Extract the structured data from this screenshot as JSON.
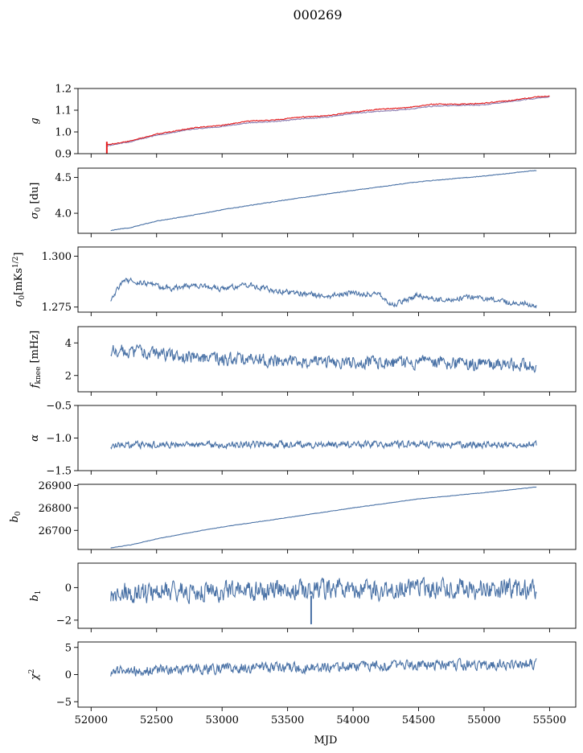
{
  "title": "000269",
  "xlabel": "MJD",
  "xlim": [
    51900,
    55700
  ],
  "xticks": [
    52000,
    52500,
    53000,
    53500,
    54000,
    54500,
    55000,
    55500
  ],
  "colors": {
    "main": "#4a72a6",
    "secondary": "#8a7bb0",
    "highlight": "#e41a1c"
  },
  "chart_data": [
    {
      "type": "line",
      "id": "g",
      "ylabel": "g",
      "ylim": [
        0.9,
        1.2
      ],
      "yticks": [
        0.9,
        1.0,
        1.1,
        1.2
      ],
      "tick_labels": [
        "0.9",
        "1.0",
        "1.1",
        "1.2"
      ],
      "series": [
        {
          "color": "#8a7bb0",
          "noise": 0.002,
          "points": [
            [
              52120,
              0.935
            ],
            [
              52300,
              0.955
            ],
            [
              52500,
              0.985
            ],
            [
              52800,
              1.015
            ],
            [
              53000,
              1.025
            ],
            [
              53200,
              1.042
            ],
            [
              53400,
              1.048
            ],
            [
              53600,
              1.06
            ],
            [
              53800,
              1.068
            ],
            [
              54000,
              1.085
            ],
            [
              54200,
              1.095
            ],
            [
              54400,
              1.103
            ],
            [
              54600,
              1.118
            ],
            [
              54800,
              1.122
            ],
            [
              55000,
              1.125
            ],
            [
              55200,
              1.14
            ],
            [
              55400,
              1.155
            ],
            [
              55500,
              1.162
            ]
          ]
        },
        {
          "color": "#e41a1c",
          "noise": 0.002,
          "points": [
            [
              52120,
              0.94
            ],
            [
              52300,
              0.958
            ],
            [
              52500,
              0.99
            ],
            [
              52800,
              1.02
            ],
            [
              53000,
              1.03
            ],
            [
              53200,
              1.05
            ],
            [
              53400,
              1.055
            ],
            [
              53600,
              1.068
            ],
            [
              53800,
              1.075
            ],
            [
              54000,
              1.092
            ],
            [
              54200,
              1.105
            ],
            [
              54400,
              1.11
            ],
            [
              54600,
              1.128
            ],
            [
              54800,
              1.128
            ],
            [
              55000,
              1.132
            ],
            [
              55200,
              1.145
            ],
            [
              55400,
              1.162
            ],
            [
              55500,
              1.165
            ]
          ]
        }
      ],
      "spike": {
        "x": 52120,
        "y_from": 0.9,
        "y_to": 0.955,
        "color": "#e41a1c"
      }
    },
    {
      "type": "line",
      "id": "sigma0_du",
      "ylabel": "σ0 [du]",
      "ylim": [
        3.72,
        4.63
      ],
      "yticks": [
        4.0,
        4.5
      ],
      "tick_labels": [
        "4.0",
        "4.5"
      ],
      "series": [
        {
          "color": "#4a72a6",
          "noise": 0.004,
          "points": [
            [
              52150,
              3.76
            ],
            [
              52300,
              3.8
            ],
            [
              52500,
              3.89
            ],
            [
              52800,
              3.98
            ],
            [
              53000,
              4.05
            ],
            [
              53500,
              4.19
            ],
            [
              54000,
              4.32
            ],
            [
              54500,
              4.44
            ],
            [
              55000,
              4.52
            ],
            [
              55400,
              4.6
            ]
          ]
        }
      ]
    },
    {
      "type": "line",
      "id": "sigma0_mk",
      "ylabel": "σ0[mKs1/2]",
      "ylim": [
        1.2725,
        1.3045
      ],
      "yticks": [
        1.275,
        1.3
      ],
      "tick_labels": [
        "1.275",
        "1.300"
      ],
      "series": [
        {
          "color": "#4a72a6",
          "noise": 0.0012,
          "points": [
            [
              52150,
              1.279
            ],
            [
              52250,
              1.288
            ],
            [
              52400,
              1.287
            ],
            [
              52600,
              1.284
            ],
            [
              52800,
              1.286
            ],
            [
              53000,
              1.284
            ],
            [
              53200,
              1.286
            ],
            [
              53400,
              1.283
            ],
            [
              53600,
              1.282
            ],
            [
              53800,
              1.28
            ],
            [
              54000,
              1.282
            ],
            [
              54200,
              1.281
            ],
            [
              54300,
              1.276
            ],
            [
              54500,
              1.281
            ],
            [
              54700,
              1.278
            ],
            [
              54900,
              1.28
            ],
            [
              55100,
              1.278
            ],
            [
              55300,
              1.277
            ],
            [
              55400,
              1.275
            ]
          ]
        }
      ]
    },
    {
      "type": "line",
      "id": "fknee",
      "ylabel": "fknee [mHz]",
      "ylim": [
        1.0,
        5.0
      ],
      "yticks": [
        2,
        4
      ],
      "tick_labels": [
        "2",
        "4"
      ],
      "series": [
        {
          "color": "#4a72a6",
          "noise": 0.35,
          "points": [
            [
              52150,
              3.6
            ],
            [
              52500,
              3.3
            ],
            [
              53000,
              3.0
            ],
            [
              53500,
              2.9
            ],
            [
              54000,
              2.8
            ],
            [
              54500,
              2.8
            ],
            [
              55000,
              2.7
            ],
            [
              55400,
              2.6
            ]
          ]
        }
      ]
    },
    {
      "type": "line",
      "id": "alpha",
      "ylabel": "α",
      "ylim": [
        -1.5,
        -0.5
      ],
      "yticks": [
        -1.5,
        -1.0,
        -0.5
      ],
      "tick_labels": [
        "−1.5",
        "−1.0",
        "−0.5"
      ],
      "series": [
        {
          "color": "#4a72a6",
          "noise": 0.045,
          "points": [
            [
              52150,
              -1.1
            ],
            [
              55400,
              -1.1
            ]
          ]
        }
      ]
    },
    {
      "type": "line",
      "id": "b0",
      "ylabel": "b0",
      "ylim": [
        26615,
        26905
      ],
      "yticks": [
        26700,
        26800,
        26900
      ],
      "tick_labels": [
        "26700",
        "26800",
        "26900"
      ],
      "series": [
        {
          "color": "#4a72a6",
          "noise": 0.8,
          "points": [
            [
              52150,
              26622
            ],
            [
              52300,
              26635
            ],
            [
              52500,
              26662
            ],
            [
              52800,
              26695
            ],
            [
              53000,
              26715
            ],
            [
              53500,
              26757
            ],
            [
              54000,
              26800
            ],
            [
              54500,
              26840
            ],
            [
              55000,
              26868
            ],
            [
              55400,
              26893
            ]
          ]
        }
      ]
    },
    {
      "type": "line",
      "id": "b1",
      "ylabel": "b1",
      "ylim": [
        -2.5,
        1.5
      ],
      "yticks": [
        -2,
        0
      ],
      "tick_labels": [
        "−2",
        "0"
      ],
      "series": [
        {
          "color": "#4a72a6",
          "noise": 0.55,
          "points": [
            [
              52150,
              -0.3
            ],
            [
              52500,
              -0.3
            ],
            [
              53000,
              -0.2
            ],
            [
              53500,
              -0.1
            ],
            [
              54000,
              -0.1
            ],
            [
              54500,
              -0.1
            ],
            [
              55000,
              -0.1
            ],
            [
              55400,
              -0.1
            ]
          ]
        }
      ],
      "spike": {
        "x": 53680,
        "y_from": -0.5,
        "y_to": -2.25,
        "color": "#4a72a6"
      }
    },
    {
      "type": "line",
      "id": "chi2",
      "ylabel": "χ2",
      "ylim": [
        -6,
        6
      ],
      "yticks": [
        -5,
        0,
        5
      ],
      "tick_labels": [
        "−5",
        "0",
        "5"
      ],
      "series": [
        {
          "color": "#4a72a6",
          "noise": 0.85,
          "points": [
            [
              52150,
              0.5
            ],
            [
              52500,
              0.8
            ],
            [
              53000,
              1.1
            ],
            [
              53500,
              1.3
            ],
            [
              54000,
              1.5
            ],
            [
              54500,
              1.7
            ],
            [
              55000,
              1.8
            ],
            [
              55400,
              2.0
            ]
          ]
        }
      ]
    }
  ]
}
